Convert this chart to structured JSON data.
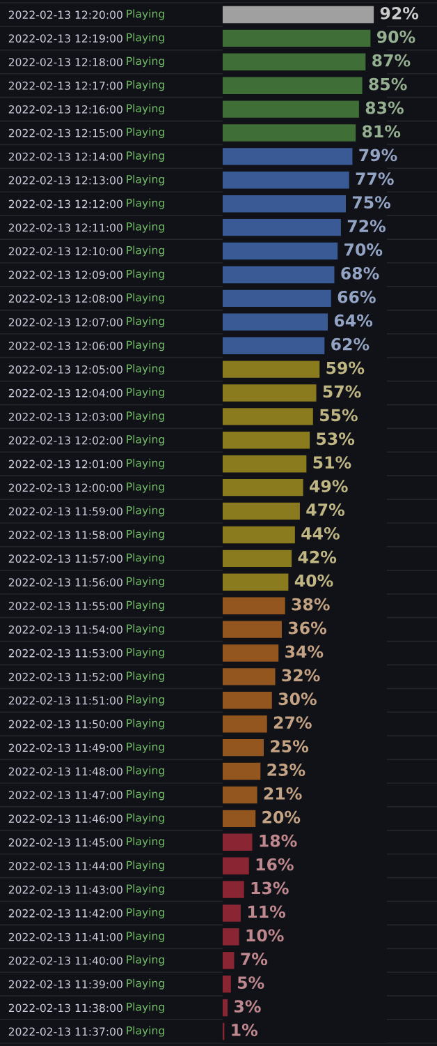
{
  "chart_data": {
    "type": "bar",
    "orientation": "horizontal",
    "categories": [
      "2022-02-13 12:20:00",
      "2022-02-13 12:19:00",
      "2022-02-13 12:18:00",
      "2022-02-13 12:17:00",
      "2022-02-13 12:16:00",
      "2022-02-13 12:15:00",
      "2022-02-13 12:14:00",
      "2022-02-13 12:13:00",
      "2022-02-13 12:12:00",
      "2022-02-13 12:11:00",
      "2022-02-13 12:10:00",
      "2022-02-13 12:09:00",
      "2022-02-13 12:08:00",
      "2022-02-13 12:07:00",
      "2022-02-13 12:06:00",
      "2022-02-13 12:05:00",
      "2022-02-13 12:04:00",
      "2022-02-13 12:03:00",
      "2022-02-13 12:02:00",
      "2022-02-13 12:01:00",
      "2022-02-13 12:00:00",
      "2022-02-13 11:59:00",
      "2022-02-13 11:58:00",
      "2022-02-13 11:57:00",
      "2022-02-13 11:56:00",
      "2022-02-13 11:55:00",
      "2022-02-13 11:54:00",
      "2022-02-13 11:53:00",
      "2022-02-13 11:52:00",
      "2022-02-13 11:51:00",
      "2022-02-13 11:50:00",
      "2022-02-13 11:49:00",
      "2022-02-13 11:48:00",
      "2022-02-13 11:47:00",
      "2022-02-13 11:46:00",
      "2022-02-13 11:45:00",
      "2022-02-13 11:44:00",
      "2022-02-13 11:43:00",
      "2022-02-13 11:42:00",
      "2022-02-13 11:41:00",
      "2022-02-13 11:40:00",
      "2022-02-13 11:39:00",
      "2022-02-13 11:38:00",
      "2022-02-13 11:37:00"
    ],
    "values": [
      92,
      90,
      87,
      85,
      83,
      81,
      79,
      77,
      75,
      72,
      70,
      68,
      66,
      64,
      62,
      59,
      57,
      55,
      53,
      51,
      49,
      47,
      44,
      42,
      40,
      38,
      36,
      34,
      32,
      30,
      27,
      25,
      23,
      21,
      20,
      18,
      16,
      13,
      11,
      10,
      7,
      5,
      3,
      1
    ],
    "colors": [
      "#a0a0a0",
      "#3f6e37",
      "#3f6e37",
      "#3f6e37",
      "#3f6e37",
      "#3f6e37",
      "#3a5a96",
      "#3a5a96",
      "#3a5a96",
      "#3a5a96",
      "#3a5a96",
      "#3a5a96",
      "#3a5a96",
      "#3a5a96",
      "#3a5a96",
      "#8a7b1f",
      "#8a7b1f",
      "#8a7b1f",
      "#8a7b1f",
      "#8a7b1f",
      "#8a7b1f",
      "#8a7b1f",
      "#8a7b1f",
      "#8a7b1f",
      "#8a7b1f",
      "#94561f",
      "#94561f",
      "#94561f",
      "#94561f",
      "#94561f",
      "#94561f",
      "#94561f",
      "#94561f",
      "#94561f",
      "#94561f",
      "#8a2633",
      "#8a2633",
      "#8a2633",
      "#8a2633",
      "#8a2633",
      "#8a2633",
      "#8a2633",
      "#8a2633",
      "#8a2633"
    ],
    "value_labels": [
      "92%",
      "90%",
      "87%",
      "85%",
      "83%",
      "81%",
      "79%",
      "77%",
      "75%",
      "72%",
      "70%",
      "68%",
      "66%",
      "64%",
      "62%",
      "59%",
      "57%",
      "55%",
      "53%",
      "51%",
      "49%",
      "47%",
      "44%",
      "42%",
      "40%",
      "38%",
      "36%",
      "34%",
      "32%",
      "30%",
      "27%",
      "25%",
      "23%",
      "21%",
      "20%",
      "18%",
      "16%",
      "13%",
      "11%",
      "10%",
      "7%",
      "5%",
      "3%",
      "1%"
    ],
    "xlim": [
      0,
      100
    ],
    "tick_labels": "y",
    "annotations": [
      "Playing",
      "Playing",
      "Playing",
      "Playing",
      "Playing",
      "Playing",
      "Playing",
      "Playing",
      "Playing",
      "Playing",
      "Playing",
      "Playing",
      "Playing",
      "Playing",
      "Playing",
      "Playing",
      "Playing",
      "Playing",
      "Playing",
      "Playing",
      "Playing",
      "Playing",
      "Playing",
      "Playing",
      "Playing",
      "Playing",
      "Playing",
      "Playing",
      "Playing",
      "Playing",
      "Playing",
      "Playing",
      "Playing",
      "Playing",
      "Playing",
      "Playing",
      "Playing",
      "Playing",
      "Playing",
      "Playing",
      "Playing",
      "Playing",
      "Playing",
      "Playing"
    ]
  }
}
